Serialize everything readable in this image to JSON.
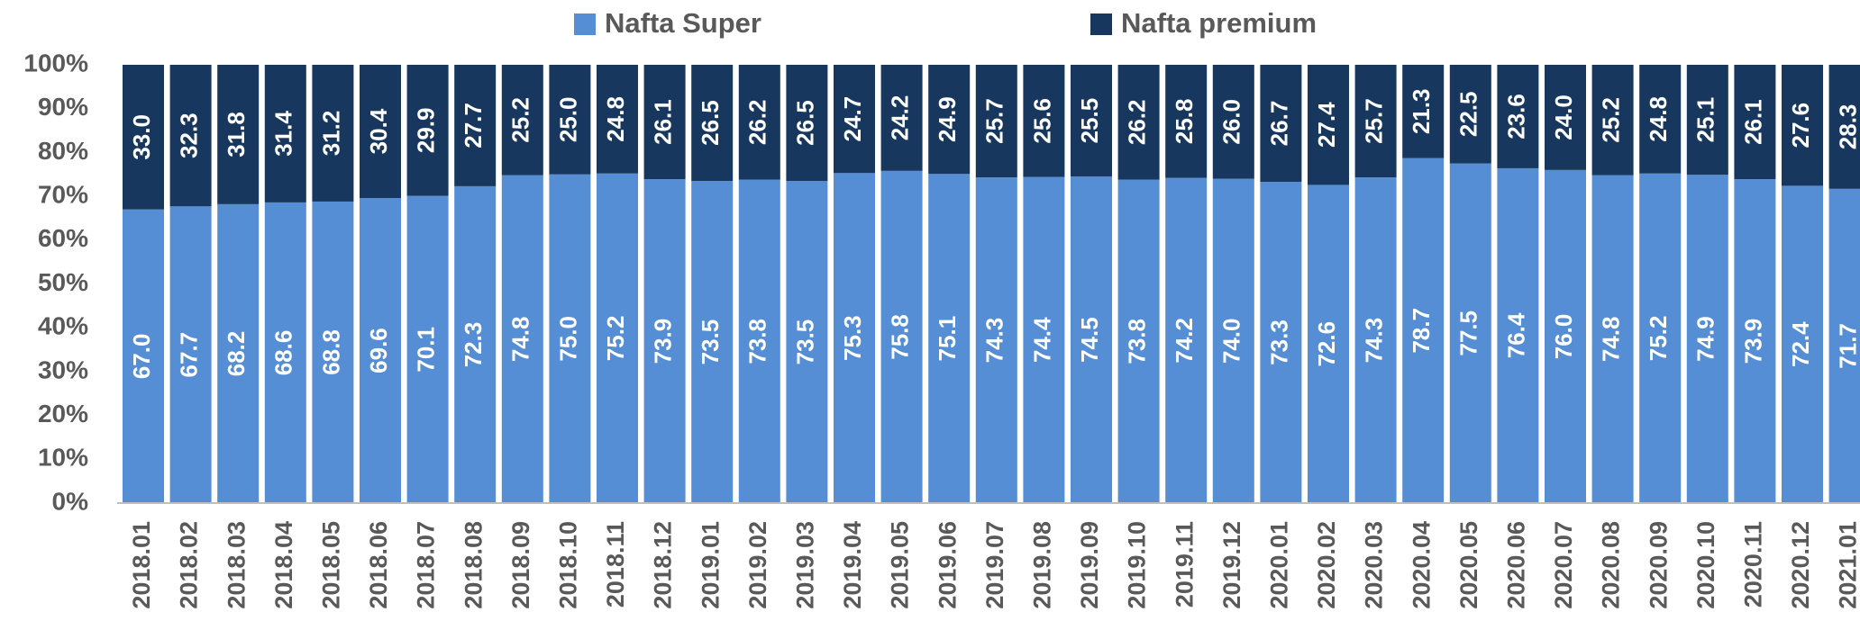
{
  "chart_data": {
    "type": "stacked_bar",
    "categories": [
      "2018.01",
      "2018.02",
      "2018.03",
      "2018.04",
      "2018.05",
      "2018.06",
      "2018.07",
      "2018.08",
      "2018.09",
      "2018.10",
      "2018.11",
      "2018.12",
      "2019.01",
      "2019.02",
      "2019.03",
      "2019.04",
      "2019.05",
      "2019.06",
      "2019.07",
      "2019.08",
      "2019.09",
      "2019.10",
      "2019.11",
      "2019.12",
      "2020.01",
      "2020.02",
      "2020.03",
      "2020.04",
      "2020.05",
      "2020.06",
      "2020.07",
      "2020.08",
      "2020.09",
      "2020.10",
      "2020.11",
      "2020.12",
      "2021.01"
    ],
    "series": [
      {
        "name": "Nafta Super",
        "color": "#558ed5",
        "values": [
          67.0,
          67.7,
          68.2,
          68.6,
          68.8,
          69.6,
          70.1,
          72.3,
          74.8,
          75.0,
          75.2,
          73.9,
          73.5,
          73.8,
          73.5,
          75.3,
          75.8,
          75.1,
          74.3,
          74.4,
          74.5,
          73.8,
          74.2,
          74.0,
          73.3,
          72.6,
          74.3,
          78.7,
          77.5,
          76.4,
          76.0,
          74.8,
          75.2,
          74.9,
          73.9,
          72.4,
          71.7
        ],
        "value_labels": [
          "67.0",
          "67.7",
          "68.2",
          "68.6",
          "68.8",
          "69.6",
          "70.1",
          "72.3",
          "74.8",
          "75.0",
          "75.2",
          "73.9",
          "73.5",
          "73.8",
          "73.5",
          "75.3",
          "75.8",
          "75.1",
          "74.3",
          "74.4",
          "74.5",
          "73.8",
          "74.2",
          "74.0",
          "73.3",
          "72.6",
          "74.3",
          "78.7",
          "77.5",
          "76.4",
          "76.0",
          "74.8",
          "75.2",
          "74.9",
          "73.9",
          "72.4",
          "71.7"
        ]
      },
      {
        "name": "Nafta premium",
        "color": "#17375e",
        "values": [
          33.0,
          32.3,
          31.8,
          31.4,
          31.2,
          30.4,
          29.9,
          27.7,
          25.2,
          25.0,
          24.8,
          26.1,
          26.5,
          26.2,
          26.5,
          24.7,
          24.2,
          24.9,
          25.7,
          25.6,
          25.5,
          26.2,
          25.8,
          26.0,
          26.7,
          27.4,
          25.7,
          21.3,
          22.5,
          23.6,
          24.0,
          25.2,
          24.8,
          25.1,
          26.1,
          27.6,
          28.3
        ],
        "value_labels": [
          "33.0",
          "32.3",
          "31.8",
          "31.4",
          "31.2",
          "30.4",
          "29.9",
          "27.7",
          "25.2",
          "25.0",
          "24.8",
          "26.1",
          "26.5",
          "26.2",
          "26.5",
          "24.7",
          "24.2",
          "24.9",
          "25.7",
          "25.6",
          "25.5",
          "26.2",
          "25.8",
          "26.0",
          "26.7",
          "27.4",
          "25.7",
          "21.3",
          "22.5",
          "23.6",
          "24.0",
          "25.2",
          "24.8",
          "25.1",
          "26.1",
          "27.6",
          "28.3"
        ]
      }
    ],
    "ylim": [
      0,
      100
    ],
    "yticks": [
      {
        "value": 0,
        "label": "0%"
      },
      {
        "value": 10,
        "label": "10%"
      },
      {
        "value": 20,
        "label": "20%"
      },
      {
        "value": 30,
        "label": "30%"
      },
      {
        "value": 40,
        "label": "40%"
      },
      {
        "value": 50,
        "label": "50%"
      },
      {
        "value": 60,
        "label": "60%"
      },
      {
        "value": 70,
        "label": "70%"
      },
      {
        "value": 80,
        "label": "80%"
      },
      {
        "value": 90,
        "label": "90%"
      },
      {
        "value": 100,
        "label": "100%"
      }
    ],
    "legend": "top"
  }
}
